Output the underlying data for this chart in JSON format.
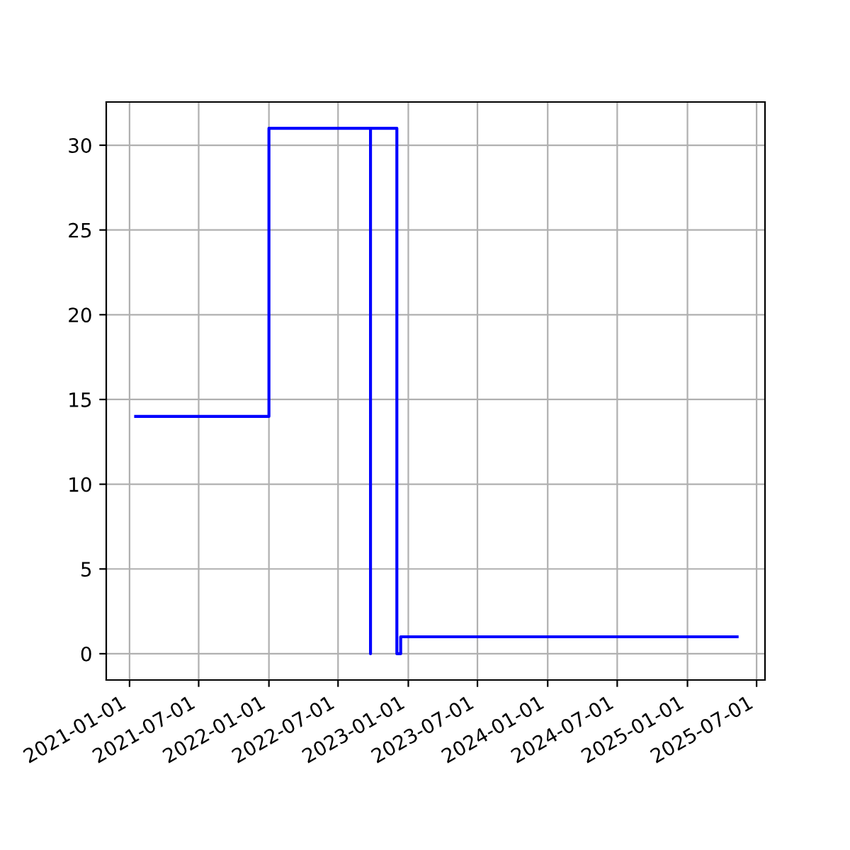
{
  "chart_data": {
    "type": "line",
    "x": [
      "2021-01-17",
      "2022-01-01",
      "2022-01-01",
      "2022-09-24",
      "2022-09-24",
      "2022-09-24",
      "2022-12-02",
      "2022-12-02",
      "2022-12-12",
      "2022-12-12",
      "2025-05-11"
    ],
    "series": [
      {
        "color": "#0000ff",
        "values": [
          14,
          14,
          31,
          31,
          0,
          31,
          31,
          0,
          0,
          1,
          1
        ]
      }
    ],
    "xlim": [
      "2020-11-01",
      "2025-07-23"
    ],
    "xticks": [
      "2021-01-01",
      "2021-07-01",
      "2022-01-01",
      "2022-07-01",
      "2023-01-01",
      "2023-07-01",
      "2024-01-01",
      "2024-07-01",
      "2025-01-01",
      "2025-07-01"
    ],
    "ylim": [
      -1.55,
      32.55
    ],
    "yticks": [
      0,
      5,
      10,
      15,
      20,
      25,
      30
    ],
    "grid": true
  }
}
